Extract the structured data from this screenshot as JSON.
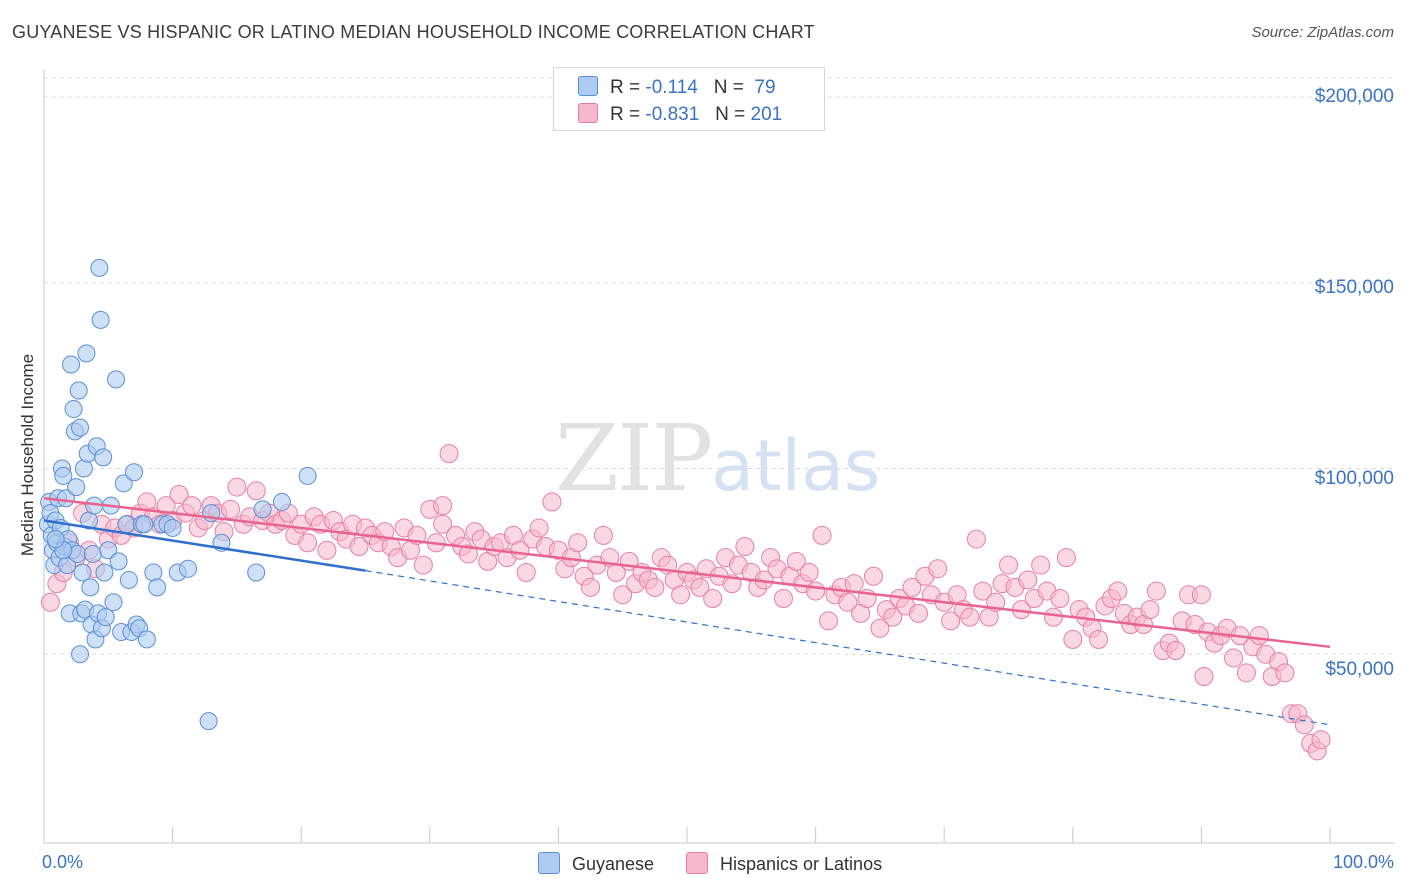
{
  "header": {
    "title": "GUYANESE VS HISPANIC OR LATINO MEDIAN HOUSEHOLD INCOME CORRELATION CHART",
    "source": "Source: ZipAtlas.com"
  },
  "legend": {
    "series1": {
      "r_label": "R =",
      "r_value": "-0.114",
      "n_label": "N =",
      "n_value": "79"
    },
    "series2": {
      "r_label": "R =",
      "r_value": "-0.831",
      "n_label": "N =",
      "n_value": "201"
    }
  },
  "bottom_legend": {
    "series1": "Guyanese",
    "series2": "Hispanics or Latinos"
  },
  "watermark": {
    "zip": "ZIP",
    "atlas": "atlas"
  },
  "colors": {
    "blue_fill": "#aecbf0",
    "blue_stroke": "#5b8fd6",
    "blue_line": "#2f6fcf",
    "pink_fill": "#f5b8cc",
    "pink_stroke": "#e87fa2",
    "pink_line": "#e8638f",
    "tick_text": "#3a73c4",
    "grid": "#dcdcdc"
  },
  "chart_data": {
    "type": "scatter",
    "title": "GUYANESE VS HISPANIC OR LATINO MEDIAN HOUSEHOLD INCOME CORRELATION CHART",
    "xlabel": "",
    "ylabel": "Median Household Income",
    "xlim": [
      0,
      100
    ],
    "ylim": [
      0,
      210000
    ],
    "x_tick_labels": [
      "0.0%",
      "100.0%"
    ],
    "y_ticks": [
      50000,
      100000,
      150000,
      200000
    ],
    "y_tick_labels": [
      "$50,000",
      "$100,000",
      "$150,000",
      "$200,000"
    ],
    "grid": true,
    "legend_position": "top-center",
    "series": [
      {
        "name": "Guyanese",
        "R": -0.114,
        "N": 79,
        "trend": {
          "x_start": 0,
          "y_start": 86000,
          "x_end": 25,
          "y_end": 72500,
          "x_extrapolated_end": 100,
          "y_extrapolated_end": 31000
        },
        "points": [
          [
            0.3,
            85000
          ],
          [
            0.4,
            91000
          ],
          [
            0.5,
            88000
          ],
          [
            0.6,
            82000
          ],
          [
            0.7,
            78000
          ],
          [
            0.8,
            74000
          ],
          [
            0.9,
            86000
          ],
          [
            1.0,
            80000
          ],
          [
            1.1,
            92000
          ],
          [
            1.2,
            76000
          ],
          [
            1.3,
            84000
          ],
          [
            1.4,
            100000
          ],
          [
            1.5,
            98000
          ],
          [
            1.6,
            79000
          ],
          [
            1.7,
            92000
          ],
          [
            1.8,
            74000
          ],
          [
            1.9,
            81000
          ],
          [
            2.0,
            61000
          ],
          [
            2.1,
            128000
          ],
          [
            2.2,
            78000
          ],
          [
            2.3,
            116000
          ],
          [
            2.4,
            110000
          ],
          [
            2.5,
            95000
          ],
          [
            2.6,
            77000
          ],
          [
            2.7,
            121000
          ],
          [
            2.8,
            111000
          ],
          [
            2.9,
            61000
          ],
          [
            3.0,
            72000
          ],
          [
            3.1,
            100000
          ],
          [
            3.2,
            62000
          ],
          [
            3.3,
            131000
          ],
          [
            3.4,
            104000
          ],
          [
            3.5,
            86000
          ],
          [
            3.6,
            68000
          ],
          [
            3.7,
            58000
          ],
          [
            3.8,
            77000
          ],
          [
            3.9,
            90000
          ],
          [
            4.0,
            54000
          ],
          [
            4.1,
            106000
          ],
          [
            4.2,
            61000
          ],
          [
            4.3,
            154000
          ],
          [
            4.4,
            140000
          ],
          [
            4.5,
            57000
          ],
          [
            4.6,
            103000
          ],
          [
            4.7,
            72000
          ],
          [
            4.8,
            60000
          ],
          [
            5.0,
            78000
          ],
          [
            5.2,
            90000
          ],
          [
            5.4,
            64000
          ],
          [
            5.6,
            124000
          ],
          [
            5.8,
            75000
          ],
          [
            6.0,
            56000
          ],
          [
            6.2,
            96000
          ],
          [
            6.4,
            85000
          ],
          [
            6.6,
            70000
          ],
          [
            6.8,
            56000
          ],
          [
            7.0,
            99000
          ],
          [
            7.2,
            58000
          ],
          [
            7.4,
            57000
          ],
          [
            7.6,
            85000
          ],
          [
            7.8,
            85000
          ],
          [
            8.0,
            54000
          ],
          [
            8.5,
            72000
          ],
          [
            8.8,
            68000
          ],
          [
            9.2,
            85000
          ],
          [
            9.6,
            85000
          ],
          [
            10.0,
            84000
          ],
          [
            10.4,
            72000
          ],
          [
            11.2,
            73000
          ],
          [
            12.8,
            32000
          ],
          [
            13.0,
            88000
          ],
          [
            13.8,
            80000
          ],
          [
            16.5,
            72000
          ],
          [
            17.0,
            89000
          ],
          [
            18.5,
            91000
          ],
          [
            20.5,
            98000
          ],
          [
            2.8,
            50000
          ],
          [
            1.5,
            78000
          ],
          [
            0.9,
            81000
          ]
        ]
      },
      {
        "name": "Hispanics or Latinos",
        "R": -0.831,
        "N": 201,
        "trend": {
          "x_start": 0,
          "y_start": 92000,
          "x_end": 100,
          "y_end": 52000
        },
        "points": [
          [
            0.5,
            64000
          ],
          [
            1.0,
            69000
          ],
          [
            1.5,
            72000
          ],
          [
            2.0,
            80000
          ],
          [
            2.5,
            76000
          ],
          [
            3.0,
            88000
          ],
          [
            3.5,
            78000
          ],
          [
            4.0,
            73000
          ],
          [
            4.5,
            85000
          ],
          [
            5.0,
            81000
          ],
          [
            5.5,
            84000
          ],
          [
            6.0,
            82000
          ],
          [
            6.5,
            85000
          ],
          [
            7.0,
            84000
          ],
          [
            7.5,
            88000
          ],
          [
            8.0,
            91000
          ],
          [
            8.5,
            87000
          ],
          [
            9.0,
            85000
          ],
          [
            9.5,
            90000
          ],
          [
            10.0,
            86000
          ],
          [
            10.5,
            93000
          ],
          [
            11.0,
            88000
          ],
          [
            11.5,
            90000
          ],
          [
            12.0,
            84000
          ],
          [
            12.5,
            86000
          ],
          [
            13.0,
            90000
          ],
          [
            13.5,
            88000
          ],
          [
            14.0,
            83000
          ],
          [
            14.5,
            89000
          ],
          [
            15.0,
            95000
          ],
          [
            15.5,
            85000
          ],
          [
            16.0,
            87000
          ],
          [
            16.5,
            94000
          ],
          [
            17.0,
            86000
          ],
          [
            17.5,
            88000
          ],
          [
            18.0,
            85000
          ],
          [
            18.5,
            86000
          ],
          [
            19.0,
            88000
          ],
          [
            19.5,
            82000
          ],
          [
            20.0,
            85000
          ],
          [
            20.5,
            80000
          ],
          [
            21.0,
            87000
          ],
          [
            21.5,
            85000
          ],
          [
            22.0,
            78000
          ],
          [
            22.5,
            86000
          ],
          [
            23.0,
            83000
          ],
          [
            23.5,
            81000
          ],
          [
            24.0,
            85000
          ],
          [
            24.5,
            79000
          ],
          [
            25.0,
            84000
          ],
          [
            25.5,
            82000
          ],
          [
            26.0,
            80000
          ],
          [
            26.5,
            83000
          ],
          [
            27.0,
            79000
          ],
          [
            27.5,
            76000
          ],
          [
            28.0,
            84000
          ],
          [
            28.5,
            78000
          ],
          [
            29.0,
            82000
          ],
          [
            29.5,
            74000
          ],
          [
            30.0,
            89000
          ],
          [
            30.5,
            80000
          ],
          [
            31.0,
            85000
          ],
          [
            31.5,
            104000
          ],
          [
            32.0,
            82000
          ],
          [
            32.5,
            79000
          ],
          [
            33.0,
            77000
          ],
          [
            33.5,
            83000
          ],
          [
            34.0,
            81000
          ],
          [
            34.5,
            75000
          ],
          [
            35.0,
            79000
          ],
          [
            35.5,
            80000
          ],
          [
            36.0,
            76000
          ],
          [
            36.5,
            82000
          ],
          [
            37.0,
            78000
          ],
          [
            37.5,
            72000
          ],
          [
            38.0,
            81000
          ],
          [
            38.5,
            84000
          ],
          [
            39.0,
            79000
          ],
          [
            39.5,
            91000
          ],
          [
            40.0,
            78000
          ],
          [
            40.5,
            73000
          ],
          [
            41.0,
            76000
          ],
          [
            41.5,
            80000
          ],
          [
            42.0,
            71000
          ],
          [
            42.5,
            68000
          ],
          [
            43.0,
            74000
          ],
          [
            43.5,
            82000
          ],
          [
            44.0,
            76000
          ],
          [
            44.5,
            72000
          ],
          [
            45.0,
            66000
          ],
          [
            45.5,
            75000
          ],
          [
            46.0,
            69000
          ],
          [
            46.5,
            72000
          ],
          [
            47.0,
            70000
          ],
          [
            47.5,
            68000
          ],
          [
            48.0,
            76000
          ],
          [
            48.5,
            74000
          ],
          [
            49.0,
            70000
          ],
          [
            49.5,
            66000
          ],
          [
            50.0,
            72000
          ],
          [
            50.5,
            70000
          ],
          [
            51.0,
            68000
          ],
          [
            51.5,
            73000
          ],
          [
            52.0,
            65000
          ],
          [
            52.5,
            71000
          ],
          [
            53.0,
            76000
          ],
          [
            53.5,
            69000
          ],
          [
            54.0,
            74000
          ],
          [
            54.5,
            79000
          ],
          [
            55.0,
            72000
          ],
          [
            55.5,
            68000
          ],
          [
            56.0,
            70000
          ],
          [
            56.5,
            76000
          ],
          [
            57.0,
            73000
          ],
          [
            57.5,
            65000
          ],
          [
            58.0,
            71000
          ],
          [
            58.5,
            75000
          ],
          [
            59.0,
            69000
          ],
          [
            59.5,
            72000
          ],
          [
            60.0,
            67000
          ],
          [
            60.5,
            82000
          ],
          [
            61.0,
            59000
          ],
          [
            61.5,
            66000
          ],
          [
            62.0,
            68000
          ],
          [
            62.5,
            64000
          ],
          [
            63.0,
            69000
          ],
          [
            63.5,
            61000
          ],
          [
            64.0,
            65000
          ],
          [
            64.5,
            71000
          ],
          [
            65.0,
            57000
          ],
          [
            65.5,
            62000
          ],
          [
            66.0,
            60000
          ],
          [
            66.5,
            65000
          ],
          [
            67.0,
            63000
          ],
          [
            67.5,
            68000
          ],
          [
            68.0,
            61000
          ],
          [
            68.5,
            71000
          ],
          [
            69.0,
            66000
          ],
          [
            69.5,
            73000
          ],
          [
            70.0,
            64000
          ],
          [
            70.5,
            59000
          ],
          [
            71.0,
            66000
          ],
          [
            71.5,
            62000
          ],
          [
            72.0,
            60000
          ],
          [
            72.5,
            81000
          ],
          [
            73.0,
            67000
          ],
          [
            73.5,
            60000
          ],
          [
            74.0,
            64000
          ],
          [
            74.5,
            69000
          ],
          [
            75.0,
            74000
          ],
          [
            75.5,
            68000
          ],
          [
            76.0,
            62000
          ],
          [
            76.5,
            70000
          ],
          [
            77.0,
            65000
          ],
          [
            77.5,
            74000
          ],
          [
            78.0,
            67000
          ],
          [
            78.5,
            60000
          ],
          [
            79.0,
            65000
          ],
          [
            79.5,
            76000
          ],
          [
            80.0,
            54000
          ],
          [
            80.5,
            62000
          ],
          [
            81.0,
            60000
          ],
          [
            81.5,
            57000
          ],
          [
            82.0,
            54000
          ],
          [
            82.5,
            63000
          ],
          [
            83.0,
            65000
          ],
          [
            83.5,
            67000
          ],
          [
            84.0,
            61000
          ],
          [
            84.5,
            58000
          ],
          [
            85.0,
            60000
          ],
          [
            85.5,
            58000
          ],
          [
            86.0,
            62000
          ],
          [
            86.5,
            67000
          ],
          [
            87.0,
            51000
          ],
          [
            87.5,
            53000
          ],
          [
            88.0,
            51000
          ],
          [
            88.5,
            59000
          ],
          [
            89.0,
            66000
          ],
          [
            89.5,
            58000
          ],
          [
            90.0,
            66000
          ],
          [
            90.5,
            56000
          ],
          [
            91.0,
            53000
          ],
          [
            91.5,
            55000
          ],
          [
            92.0,
            57000
          ],
          [
            92.5,
            49000
          ],
          [
            93.0,
            55000
          ],
          [
            93.5,
            45000
          ],
          [
            94.0,
            52000
          ],
          [
            94.5,
            55000
          ],
          [
            95.0,
            50000
          ],
          [
            95.5,
            44000
          ],
          [
            96.0,
            48000
          ],
          [
            96.5,
            45000
          ],
          [
            97.0,
            34000
          ],
          [
            97.5,
            34000
          ],
          [
            98.0,
            31000
          ],
          [
            98.5,
            26000
          ],
          [
            99.0,
            24000
          ],
          [
            99.3,
            27000
          ],
          [
            90.2,
            44000
          ],
          [
            31.0,
            90000
          ]
        ]
      }
    ]
  }
}
